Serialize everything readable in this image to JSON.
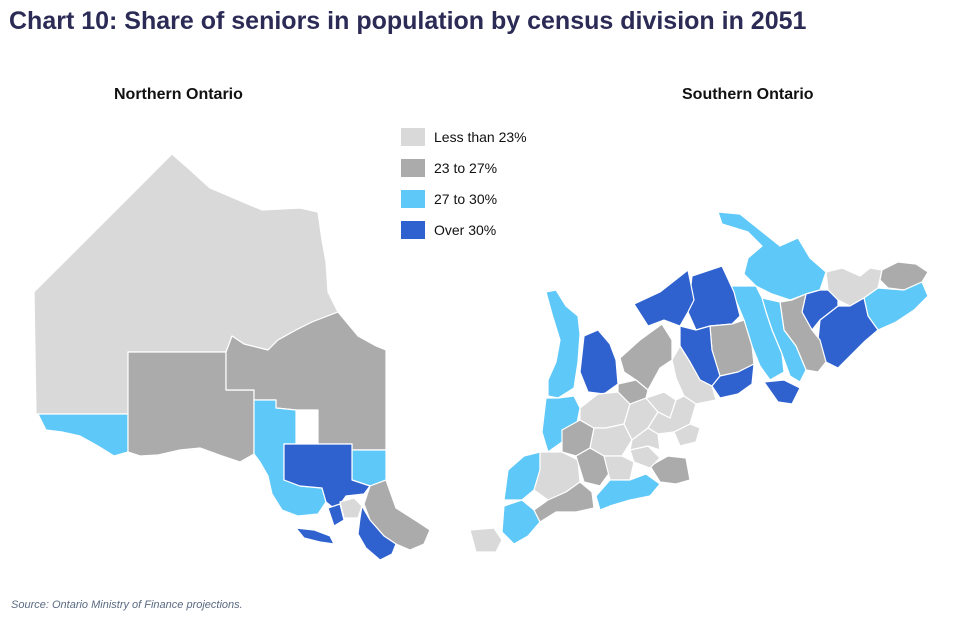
{
  "title": "Chart 10: Share of seniors in population by census division in 2051",
  "maps": {
    "north_title": "Northern Ontario",
    "south_title": "Southern Ontario"
  },
  "legend": [
    {
      "label": "Less than  23%",
      "color": "#d9d9d9"
    },
    {
      "label": "23 to 27%",
      "color": "#ababab"
    },
    {
      "label": "27 to 30%",
      "color": "#5ec8f8"
    },
    {
      "label": "Over 30%",
      "color": "#2f62cf"
    }
  ],
  "source": "Source: Ontario Ministry of Finance projections."
}
